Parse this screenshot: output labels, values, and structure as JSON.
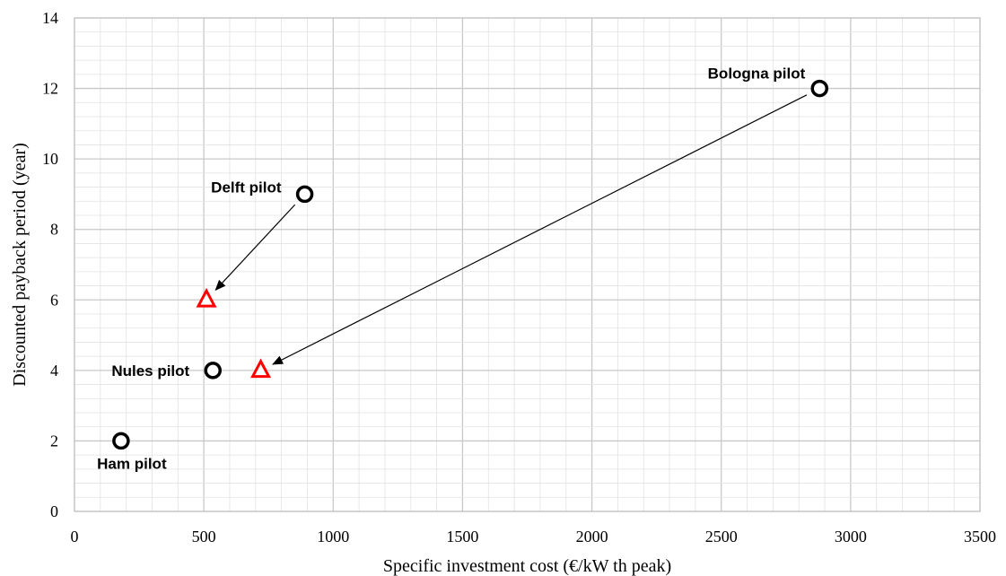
{
  "chart_data": {
    "type": "scatter",
    "xlabel": "Specific investment cost (€/kW th peak)",
    "ylabel": "Discounted payback period (year)",
    "xlim": [
      0,
      3500
    ],
    "ylim": [
      0,
      14
    ],
    "xticks": [
      0,
      500,
      1000,
      1500,
      2000,
      2500,
      3000,
      3500
    ],
    "yticks": [
      0,
      2,
      4,
      6,
      8,
      10,
      12,
      14
    ],
    "grid": true,
    "minor_grid": true,
    "series": [
      {
        "marker": "circle",
        "color": "#000000",
        "points": [
          {
            "x": 180,
            "y": 2,
            "label": "Ham pilot"
          },
          {
            "x": 535,
            "y": 4,
            "label": "Nules pilot"
          },
          {
            "x": 890,
            "y": 9,
            "label": "Delft pilot"
          },
          {
            "x": 2880,
            "y": 12,
            "label": "Bologna pilot"
          }
        ]
      },
      {
        "marker": "triangle",
        "color": "#ff0000",
        "points": [
          {
            "x": 510,
            "y": 6
          },
          {
            "x": 720,
            "y": 4
          }
        ]
      }
    ],
    "arrows": [
      {
        "from": [
          890,
          9
        ],
        "to": [
          510,
          6
        ]
      },
      {
        "from": [
          2880,
          12
        ],
        "to": [
          720,
          4
        ]
      }
    ]
  }
}
